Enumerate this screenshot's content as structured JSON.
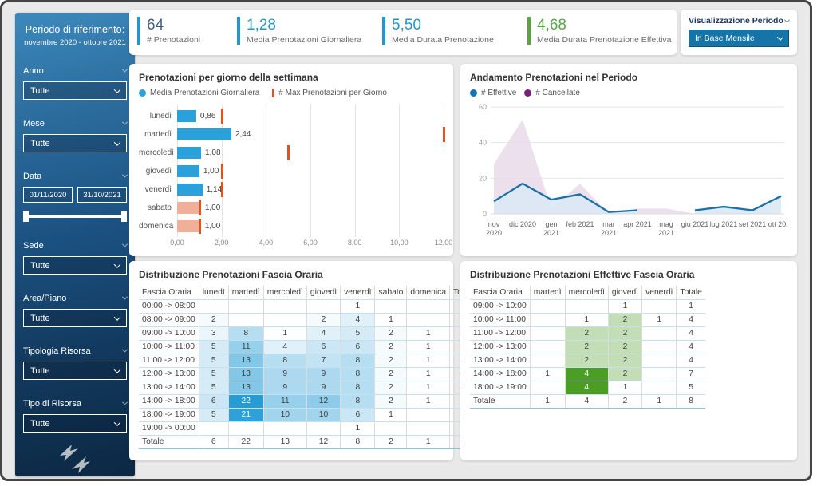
{
  "sidebar": {
    "title": "Periodo di riferimento:",
    "subtitle": "novembre 2020 - ottobre 2021",
    "filters": [
      {
        "label": "Anno",
        "value": "Tutte"
      },
      {
        "label": "Mese",
        "value": "Tutte"
      },
      {
        "label": "Data",
        "from": "01/11/2020",
        "to": "31/10/2021"
      },
      {
        "label": "Sede",
        "value": "Tutte"
      },
      {
        "label": "Area/Piano",
        "value": "Tutte"
      },
      {
        "label": "Tipologia Risorsa",
        "value": "Tutte"
      },
      {
        "label": "Tipo di Risorsa",
        "value": "Tutte"
      }
    ]
  },
  "kpis": [
    {
      "value": "64",
      "label": "# Prenotazioni",
      "accent": "#2396CF",
      "value_color": "#416080"
    },
    {
      "value": "1,28",
      "label": "Media Prenotazioni Giornaliera",
      "accent": "#2396CF",
      "value_color": "#2396CF"
    },
    {
      "value": "5,50",
      "label": "Media Durata Prenotazione",
      "accent": "#2396CF",
      "value_color": "#2396CF"
    },
    {
      "value": "4,68",
      "label": "Media Durata Prenotazione Effettiva",
      "accent": "#5BA33E",
      "value_color": "#58A545"
    }
  ],
  "period_selector": {
    "label": "Visualizzazione Periodo",
    "value": "In Base Mensile"
  },
  "chart_data": [
    {
      "type": "bar",
      "title": "Prenotazioni per giorno della settimana",
      "orientation": "horizontal",
      "categories": [
        "lunedì",
        "martedì",
        "mercoledì",
        "giovedì",
        "venerdì",
        "sabato",
        "domenica"
      ],
      "series": [
        {
          "name": "Media Prenotazioni Giornaliera",
          "values": [
            0.86,
            2.44,
            1.08,
            1.0,
            1.14,
            1.0,
            1.0
          ],
          "labels": [
            "0,86",
            "2,44",
            "1,08",
            "1,00",
            "1,14",
            "1,00",
            "1,00"
          ],
          "bar_colors": [
            "#2BA1DC",
            "#2BA1DC",
            "#2BA1DC",
            "#2BA1DC",
            "#2BA1DC",
            "#F0AF98",
            "#F0AF98"
          ]
        },
        {
          "name": "# Max Prenotazioni per Giorno",
          "marker": "tick",
          "values": [
            2,
            12,
            5,
            2,
            2,
            1,
            1
          ],
          "color": "#DD5323"
        }
      ],
      "xlim": [
        0,
        12
      ],
      "x_ticks": [
        "0,00",
        "2,00",
        "4,00",
        "6,00",
        "8,00",
        "10,00",
        "12,00"
      ],
      "grid": true,
      "legend_position": "top"
    },
    {
      "type": "area",
      "title": "Andamento Prenotazioni nel Periodo",
      "x_labels": [
        [
          "nov",
          "2020"
        ],
        [
          "dic 2020"
        ],
        [
          "gen",
          "2021"
        ],
        [
          "feb 2021"
        ],
        [
          "mar",
          "2021"
        ],
        [
          "apr 2021"
        ],
        [
          "mag",
          "2021"
        ],
        [
          "giu 2021"
        ],
        [
          "lug 2021"
        ],
        [
          "set 2021"
        ],
        [
          "ott 2021"
        ]
      ],
      "ylim": [
        0,
        60
      ],
      "y_ticks": [
        0,
        20,
        40,
        60
      ],
      "grid": true,
      "legend_position": "top",
      "series": [
        {
          "name": "# Effettive",
          "color": "#1B71A5",
          "fill": "#D9E9F4",
          "values": [
            7,
            17,
            8,
            11,
            1,
            2,
            null,
            2,
            4,
            2,
            10
          ]
        },
        {
          "name": "# Cancellate",
          "color": "#7A1E7E",
          "fill": "#E8D8E8",
          "values": [
            28,
            53,
            3,
            17,
            0,
            3,
            3,
            0,
            2,
            2,
            0
          ]
        }
      ]
    },
    {
      "type": "table",
      "title": "Distribuzione Prenotazioni Fascia Oraria",
      "heat_accent": "#259CD6",
      "heat_max": 22,
      "columns": [
        "Fascia Oraria",
        "lunedì",
        "martedì",
        "mercoledì",
        "giovedì",
        "venerdì",
        "sabato",
        "domenica",
        "Totale"
      ],
      "rows": [
        [
          "00:00 -> 08:00",
          "",
          "",
          "",
          "",
          "1",
          "",
          "",
          "1"
        ],
        [
          "08:00 -> 09:00",
          "2",
          "",
          "",
          "2",
          "4",
          "1",
          "",
          "9"
        ],
        [
          "09:00 -> 10:00",
          "3",
          "8",
          "1",
          "4",
          "5",
          "2",
          "1",
          "24"
        ],
        [
          "10:00 -> 11:00",
          "5",
          "11",
          "4",
          "6",
          "6",
          "2",
          "1",
          "35"
        ],
        [
          "11:00 -> 12:00",
          "5",
          "13",
          "8",
          "7",
          "8",
          "2",
          "1",
          "44"
        ],
        [
          "12:00 -> 13:00",
          "5",
          "13",
          "9",
          "9",
          "8",
          "2",
          "1",
          "47"
        ],
        [
          "13:00 -> 14:00",
          "5",
          "13",
          "9",
          "9",
          "8",
          "2",
          "1",
          "47"
        ],
        [
          "14:00 -> 18:00",
          "6",
          "22",
          "11",
          "12",
          "8",
          "2",
          "1",
          "62"
        ],
        [
          "18:00 -> 19:00",
          "5",
          "21",
          "10",
          "10",
          "6",
          "1",
          "",
          "53"
        ],
        [
          "19:00 -> 00:00",
          "",
          "",
          "",
          "",
          "1",
          "",
          "",
          "1"
        ],
        [
          "Totale",
          "6",
          "22",
          "13",
          "12",
          "8",
          "2",
          "1",
          "64"
        ]
      ]
    },
    {
      "type": "table",
      "title": "Distribuzione Prenotazioni Effettive Fascia Oraria",
      "heat_accent": "#4C9D23",
      "heat_max": 4,
      "columns": [
        "Fascia Oraria",
        "martedì",
        "mercoledì",
        "giovedì",
        "venerdì",
        "Totale"
      ],
      "rows": [
        [
          "09:00 -> 10:00",
          "",
          "",
          "1",
          "",
          "1"
        ],
        [
          "10:00 -> 11:00",
          "",
          "1",
          "2",
          "1",
          "4"
        ],
        [
          "11:00 -> 12:00",
          "",
          "2",
          "2",
          "",
          "4"
        ],
        [
          "12:00 -> 13:00",
          "",
          "2",
          "2",
          "",
          "4"
        ],
        [
          "13:00 -> 14:00",
          "",
          "2",
          "2",
          "",
          "4"
        ],
        [
          "14:00 -> 18:00",
          "1",
          "4",
          "2",
          "",
          "7"
        ],
        [
          "18:00 -> 19:00",
          "",
          "4",
          "1",
          "",
          "5"
        ],
        [
          "Totale",
          "1",
          "4",
          "2",
          "1",
          "8"
        ]
      ]
    }
  ]
}
